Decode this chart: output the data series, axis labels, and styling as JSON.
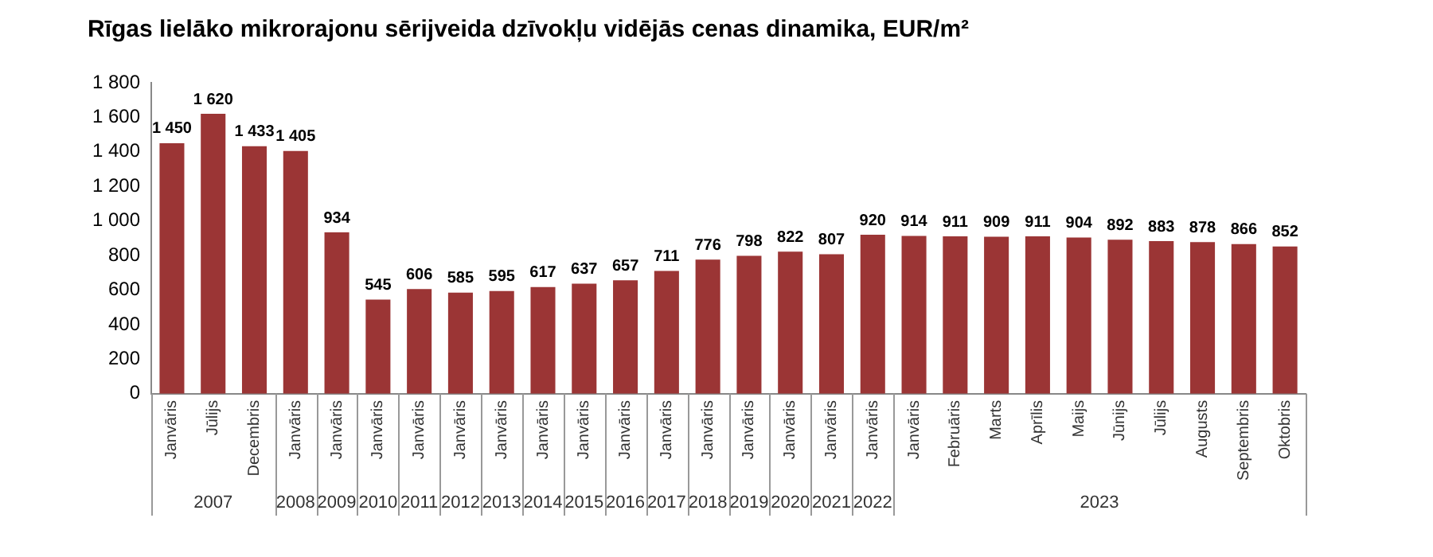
{
  "chart_data": {
    "type": "bar",
    "title": "Rīgas lielāko mikrorajonu sērijveida dzīvokļu vidējās cenas dinamika, EUR/m²",
    "categories": [
      "Janvāris",
      "Jūlijs",
      "Decembris",
      "Janvāris",
      "Janvāris",
      "Janvāris",
      "Janvāris",
      "Janvāris",
      "Janvāris",
      "Janvāris",
      "Janvāris",
      "Janvāris",
      "Janvāris",
      "Janvāris",
      "Janvāris",
      "Janvāris",
      "Janvāris",
      "Janvāris",
      "Janvāris",
      "Februāris",
      "Marts",
      "Aprīlis",
      "Maijs",
      "Jūnijs",
      "Jūlijs",
      "Augusts",
      "Septembris",
      "Oktobris"
    ],
    "values": [
      1450,
      1620,
      1433,
      1405,
      934,
      545,
      606,
      585,
      595,
      617,
      637,
      657,
      711,
      776,
      798,
      822,
      807,
      920,
      914,
      911,
      909,
      911,
      904,
      892,
      883,
      878,
      866,
      852
    ],
    "color": "#9b3535",
    "data_labels": true,
    "value_labels": [
      "1 450",
      "1 620",
      "1 433",
      "1 405",
      "934",
      "545",
      "606",
      "585",
      "595",
      "617",
      "637",
      "657",
      "711",
      "776",
      "798",
      "822",
      "807",
      "920",
      "914",
      "911",
      "909",
      "911",
      "904",
      "892",
      "883",
      "878",
      "866",
      "852"
    ],
    "ylim": [
      0,
      1800
    ],
    "yticks": [
      0,
      200,
      400,
      600,
      800,
      {
        "value": 1000,
        "label": "1 000"
      },
      {
        "value": 1200,
        "label": "1 200"
      },
      {
        "value": 1400,
        "label": "1 400"
      },
      {
        "value": 1600,
        "label": "1 600"
      },
      {
        "value": 1800,
        "label": "1 800"
      }
    ],
    "grid": false,
    "annotations": [
      "2007",
      "2008",
      "2009",
      "2010",
      "2011",
      "2012",
      "2013",
      "2014",
      "2015",
      "2016",
      "2017",
      "2018",
      "2019",
      "2020",
      "2021",
      "2022",
      "2023"
    ]
  }
}
